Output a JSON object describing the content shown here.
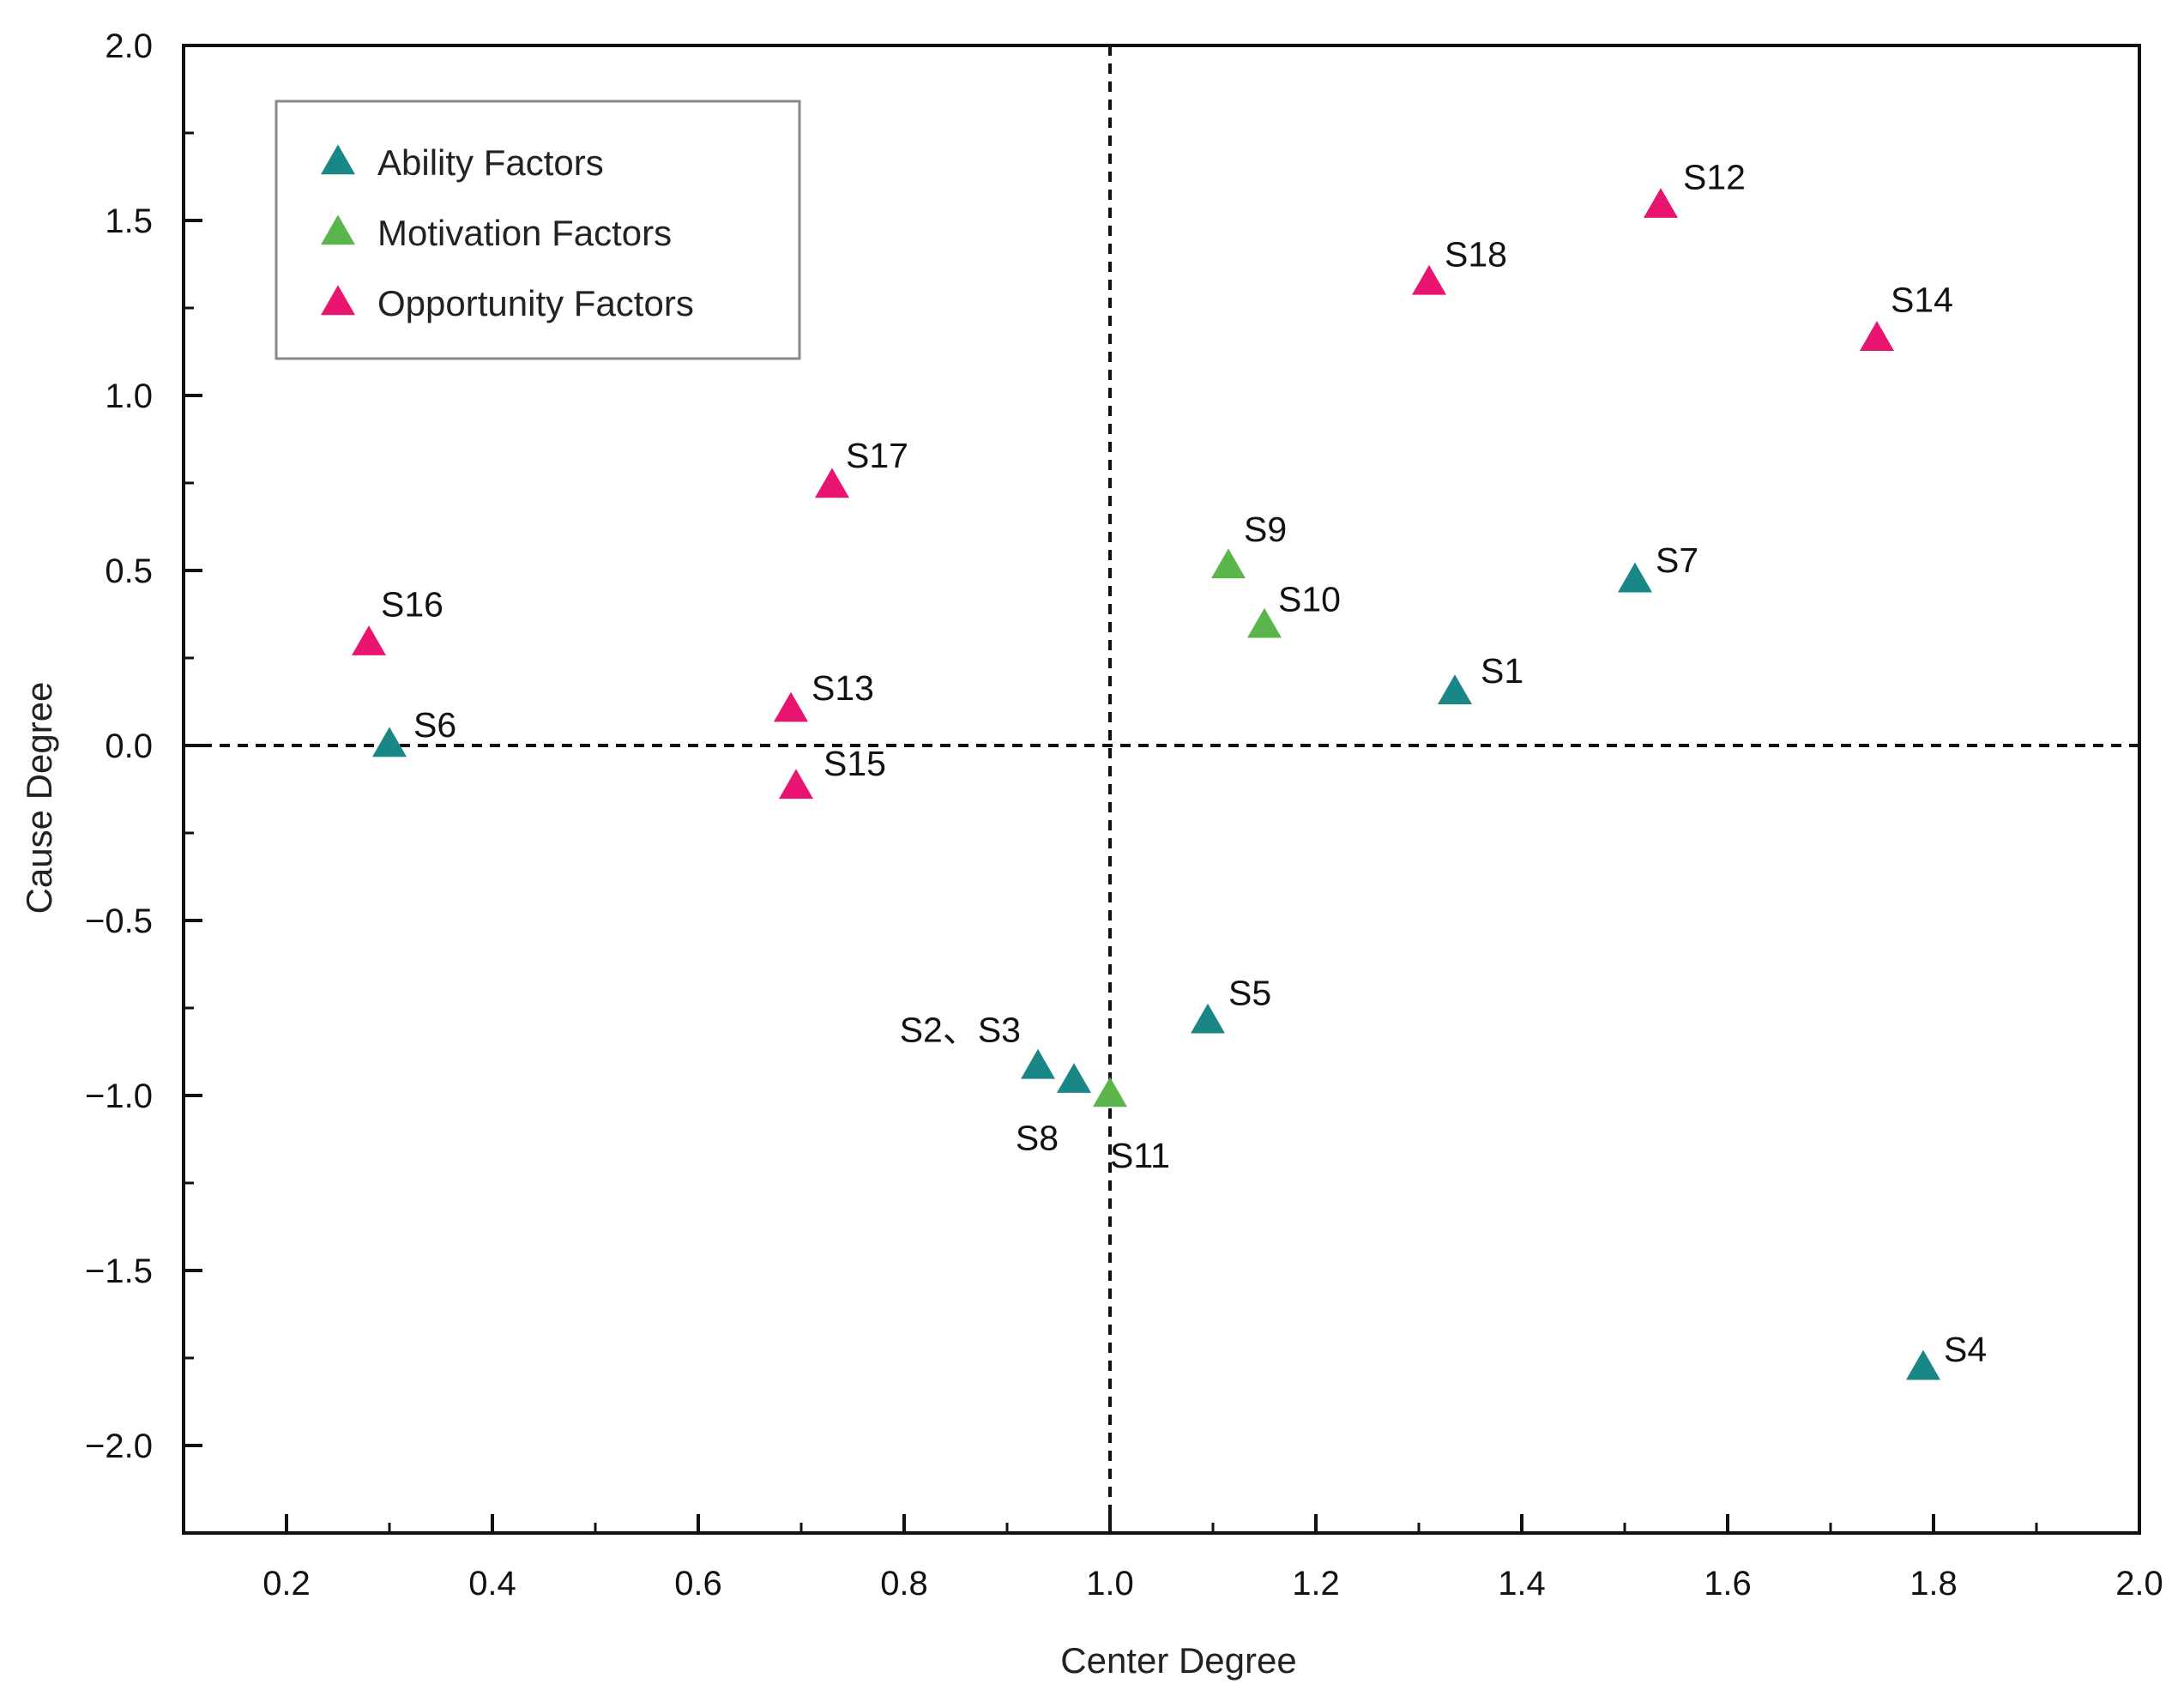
{
  "chart_data": {
    "type": "scatter",
    "xlabel": "Center Degree",
    "ylabel": "Cause Degree",
    "xlim": [
      0.1,
      2.0
    ],
    "ylim": [
      -2.25,
      2.0
    ],
    "xticks": [
      0.2,
      0.4,
      0.6,
      0.8,
      1.0,
      1.2,
      1.4,
      1.6,
      1.8,
      2.0
    ],
    "xtick_labels": [
      "0.2",
      "0.4",
      "0.6",
      "0.8",
      "1.0",
      "1.2",
      "1.4",
      "1.6",
      "1.8",
      "2.0"
    ],
    "yticks": [
      2.0,
      1.5,
      1.0,
      0.5,
      0.0,
      -0.5,
      -1.0,
      -1.5,
      -2.0
    ],
    "ytick_labels": [
      "2.0",
      "1.5",
      "1.0",
      "0.5",
      "0.0",
      "−0.5",
      "−1.0",
      "−1.5",
      "−2.0"
    ],
    "reference_lines": {
      "x": 1.0,
      "y": 0.0,
      "style": "dashed"
    },
    "legend_position": "top-left",
    "marker": "triangle",
    "series": [
      {
        "name": "Ability Factors",
        "color": "#1a8787",
        "points": [
          {
            "label": "S1",
            "x": 1.335,
            "y": 0.15
          },
          {
            "label": "S2、S3",
            "x": 0.93,
            "y": -0.92
          },
          {
            "label": "S4",
            "x": 1.79,
            "y": -1.78
          },
          {
            "label": "S5",
            "x": 1.095,
            "y": -0.79
          },
          {
            "label": "S6",
            "x": 0.3,
            "y": 0.0
          },
          {
            "label": "S7",
            "x": 1.51,
            "y": 0.47
          },
          {
            "label": "S8",
            "x": 0.965,
            "y": -0.96
          }
        ]
      },
      {
        "name": "Motivation Factors",
        "color": "#5ab54a",
        "points": [
          {
            "label": "S9",
            "x": 1.115,
            "y": 0.51
          },
          {
            "label": "S10",
            "x": 1.15,
            "y": 0.34
          },
          {
            "label": "S11",
            "x": 1.0,
            "y": -1.0
          }
        ]
      },
      {
        "name": "Opportunity Factors",
        "color": "#e8146f",
        "points": [
          {
            "label": "S12",
            "x": 1.535,
            "y": 1.54
          },
          {
            "label": "S13",
            "x": 0.69,
            "y": 0.1
          },
          {
            "label": "S14",
            "x": 1.745,
            "y": 1.16
          },
          {
            "label": "S15",
            "x": 0.695,
            "y": -0.12
          },
          {
            "label": "S16",
            "x": 0.28,
            "y": 0.29
          },
          {
            "label": "S17",
            "x": 0.73,
            "y": 0.74
          },
          {
            "label": "S18",
            "x": 1.31,
            "y": 1.32
          }
        ]
      }
    ]
  }
}
